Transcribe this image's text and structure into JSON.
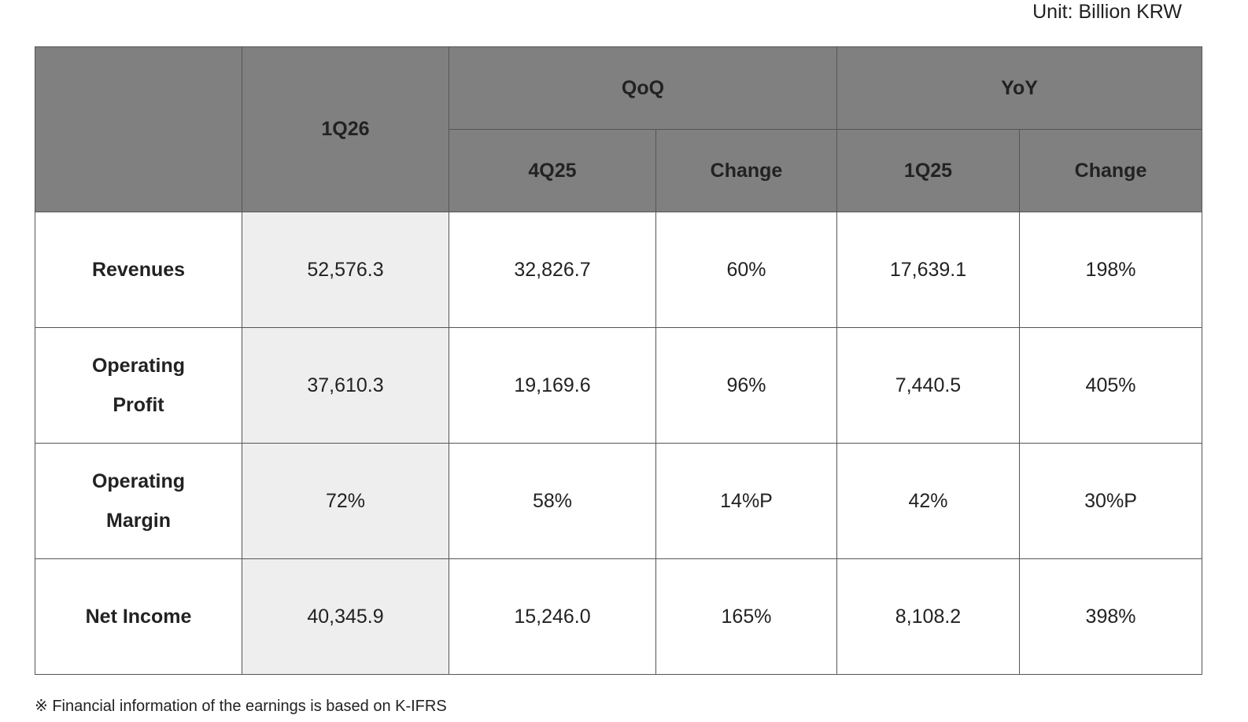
{
  "unit": "Unit: Billion KRW",
  "table": {
    "header": {
      "current": "1Q26",
      "qoq": "QoQ",
      "yoy": "YoY",
      "qoq_prev": "4Q25",
      "qoq_change": "Change",
      "yoy_prev": "1Q25",
      "yoy_change": "Change"
    },
    "rows": [
      [
        "Revenues",
        "52,576.3",
        "32,826.7",
        "60%",
        "17,639.1",
        "198%"
      ],
      [
        "Operating Profit",
        "37,610.3",
        "19,169.6",
        "96%",
        "7,440.5",
        "405%"
      ],
      [
        "Operating Margin",
        "72%",
        "58%",
        "14%P",
        "42%",
        "30%P"
      ],
      [
        "Net Income",
        "40,345.9",
        "15,246.0",
        "165%",
        "8,108.2",
        "398%"
      ]
    ]
  },
  "footnote": "※ Financial information of the earnings is based on K-IFRS"
}
